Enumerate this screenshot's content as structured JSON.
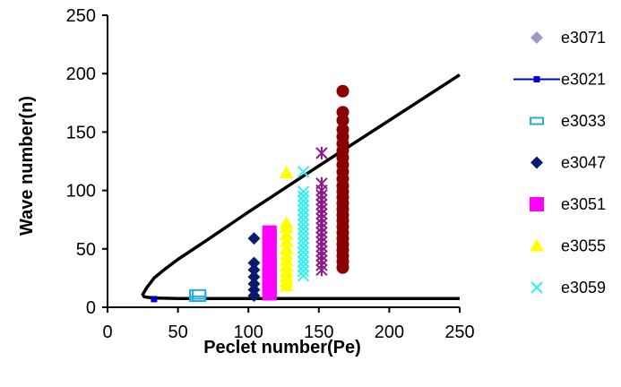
{
  "chart_data": {
    "type": "scatter",
    "title": "",
    "xlabel": "Peclet number(Pe)",
    "ylabel": "Wave number(n)",
    "xlim": [
      0,
      250
    ],
    "ylim": [
      0,
      250
    ],
    "xticks": [
      "0",
      "50",
      "100",
      "150",
      "200",
      "250"
    ],
    "yticks": [
      "0",
      "50",
      "100",
      "150",
      "200",
      "250"
    ],
    "grid": false,
    "legend_position": "right",
    "series": [
      {
        "name": "e3071",
        "marker": "diamond",
        "color": "#a497c4",
        "points": []
      },
      {
        "name": "e3021",
        "marker": "line",
        "color": "#0000cc",
        "points": [
          [
            33,
            7
          ]
        ],
        "curve_color": "#000000",
        "curve": [
          [
            250,
            199
          ],
          [
            200,
            160
          ],
          [
            150,
            121
          ],
          [
            100,
            81.5
          ],
          [
            70,
            57
          ],
          [
            50,
            41
          ],
          [
            40,
            32
          ],
          [
            33,
            25
          ],
          [
            28,
            17
          ],
          [
            25,
            11
          ],
          [
            26,
            9
          ],
          [
            32,
            8
          ],
          [
            50,
            7.5
          ],
          [
            100,
            7.5
          ],
          [
            150,
            7.5
          ],
          [
            200,
            7.5
          ],
          [
            250,
            7.5
          ]
        ]
      },
      {
        "name": "e3033",
        "marker": "hollow-rect",
        "color": "#2aa9d8",
        "points": [
          [
            63,
            8
          ],
          [
            63,
            10
          ],
          [
            63,
            12
          ],
          [
            65,
            8
          ],
          [
            65,
            10
          ],
          [
            65,
            12
          ]
        ]
      },
      {
        "name": "e3047",
        "marker": "diamond",
        "color": "#0a1a6e",
        "points": [
          [
            104,
            10
          ],
          [
            104,
            15
          ],
          [
            104,
            20
          ],
          [
            104,
            26
          ],
          [
            104,
            32
          ],
          [
            104,
            38
          ],
          [
            104,
            59
          ]
        ]
      },
      {
        "name": "e3051",
        "marker": "square",
        "color": "#ff00ff",
        "points": [
          [
            115,
            12
          ],
          [
            115,
            16
          ],
          [
            115,
            20
          ],
          [
            115,
            24
          ],
          [
            115,
            28
          ],
          [
            115,
            33
          ],
          [
            115,
            40
          ],
          [
            115,
            46
          ],
          [
            115,
            55
          ],
          [
            115,
            60
          ],
          [
            115,
            64
          ]
        ]
      },
      {
        "name": "e3055",
        "marker": "triangle",
        "color": "#ffff00",
        "points": [
          [
            127,
            18
          ],
          [
            127,
            22
          ],
          [
            127,
            26
          ],
          [
            127,
            30
          ],
          [
            127,
            35
          ],
          [
            127,
            40
          ],
          [
            127,
            45
          ],
          [
            127,
            50
          ],
          [
            127,
            56
          ],
          [
            127,
            62
          ],
          [
            127,
            68
          ],
          [
            127,
            72
          ],
          [
            127,
            115
          ]
        ]
      },
      {
        "name": "e3059",
        "marker": "x",
        "color": "#33f0f0",
        "points": [
          [
            139,
            27
          ],
          [
            139,
            31
          ],
          [
            139,
            35
          ],
          [
            139,
            39
          ],
          [
            139,
            43
          ],
          [
            139,
            47
          ],
          [
            139,
            51
          ],
          [
            139,
            55
          ],
          [
            139,
            59
          ],
          [
            139,
            63
          ],
          [
            139,
            67
          ],
          [
            139,
            71
          ],
          [
            139,
            75
          ],
          [
            139,
            79
          ],
          [
            139,
            83
          ],
          [
            139,
            87
          ],
          [
            139,
            91
          ],
          [
            139,
            95
          ],
          [
            139,
            99
          ],
          [
            139,
            116
          ]
        ]
      },
      {
        "name": "",
        "marker": "asterisk",
        "color": "#8b1a8b",
        "points": [
          [
            152,
            32
          ],
          [
            152,
            36
          ],
          [
            152,
            40
          ],
          [
            152,
            44
          ],
          [
            152,
            48
          ],
          [
            152,
            52
          ],
          [
            152,
            56
          ],
          [
            152,
            60
          ],
          [
            152,
            64
          ],
          [
            152,
            68
          ],
          [
            152,
            72
          ],
          [
            152,
            76
          ],
          [
            152,
            80
          ],
          [
            152,
            84
          ],
          [
            152,
            88
          ],
          [
            152,
            92
          ],
          [
            152,
            96
          ],
          [
            152,
            100
          ],
          [
            152,
            106
          ],
          [
            152,
            132
          ]
        ]
      },
      {
        "name": "",
        "marker": "circle",
        "color": "#8b0000",
        "points": [
          [
            167,
            34
          ],
          [
            167,
            39
          ],
          [
            167,
            44
          ],
          [
            167,
            49
          ],
          [
            167,
            54
          ],
          [
            167,
            59
          ],
          [
            167,
            64
          ],
          [
            167,
            69
          ],
          [
            167,
            74
          ],
          [
            167,
            79
          ],
          [
            167,
            84
          ],
          [
            167,
            89
          ],
          [
            167,
            94
          ],
          [
            167,
            99
          ],
          [
            167,
            104
          ],
          [
            167,
            110
          ],
          [
            167,
            116
          ],
          [
            167,
            122
          ],
          [
            167,
            128
          ],
          [
            167,
            134
          ],
          [
            167,
            140
          ],
          [
            167,
            146
          ],
          [
            167,
            152
          ],
          [
            167,
            160
          ],
          [
            167,
            167
          ],
          [
            167,
            185
          ]
        ]
      }
    ]
  }
}
